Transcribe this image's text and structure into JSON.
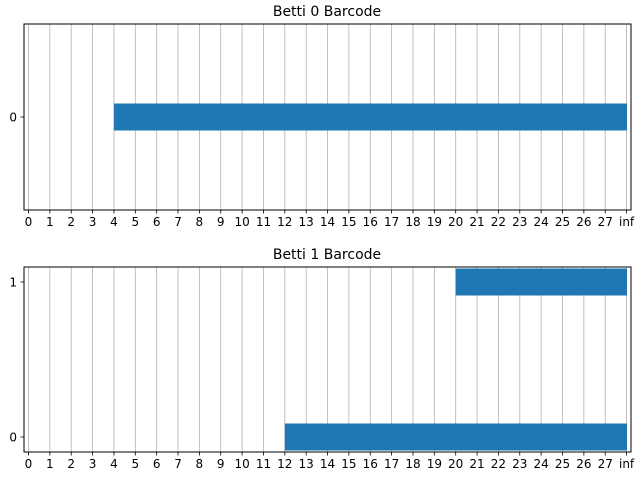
{
  "chart_data": [
    {
      "type": "bar",
      "title": "Betti 0 Barcode",
      "x_ticks": [
        "0",
        "1",
        "2",
        "3",
        "4",
        "5",
        "6",
        "7",
        "8",
        "9",
        "10",
        "11",
        "12",
        "13",
        "14",
        "15",
        "16",
        "17",
        "18",
        "19",
        "20",
        "21",
        "22",
        "23",
        "24",
        "25",
        "26",
        "27",
        "inf"
      ],
      "y_ticks": [
        "0"
      ],
      "grid": "vertical",
      "bar_color": "#1f77b4",
      "bars": [
        {
          "index": "0",
          "birth": 4,
          "death": "inf"
        }
      ]
    },
    {
      "type": "bar",
      "title": "Betti 1 Barcode",
      "x_ticks": [
        "0",
        "1",
        "2",
        "3",
        "4",
        "5",
        "6",
        "7",
        "8",
        "9",
        "10",
        "11",
        "12",
        "13",
        "14",
        "15",
        "16",
        "17",
        "18",
        "19",
        "20",
        "21",
        "22",
        "23",
        "24",
        "25",
        "26",
        "27",
        "inf"
      ],
      "y_ticks": [
        "0",
        "1"
      ],
      "grid": "vertical",
      "bar_color": "#1f77b4",
      "bars": [
        {
          "index": "0",
          "birth": 12,
          "death": "inf"
        },
        {
          "index": "1",
          "birth": 20,
          "death": "inf"
        }
      ]
    }
  ]
}
